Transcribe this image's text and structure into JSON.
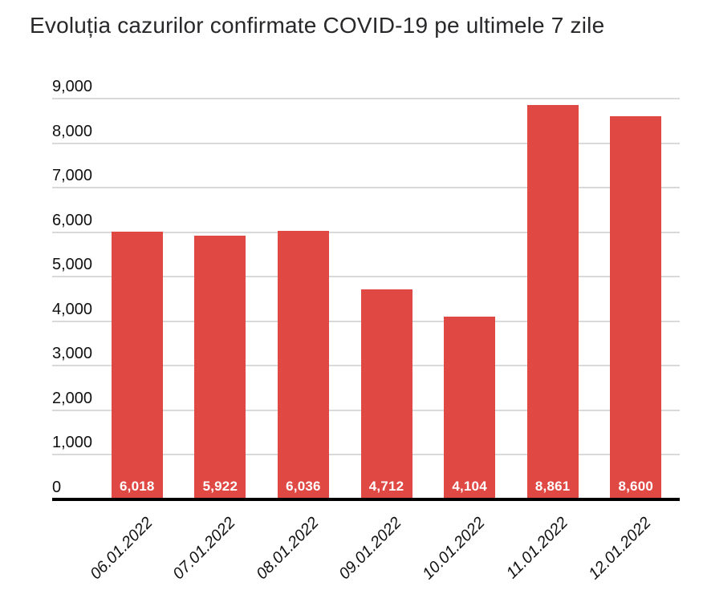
{
  "title": "Evoluția cazurilor confirmate COVID-19 pe ultimele 7 zile",
  "chart_data": {
    "type": "bar",
    "title": "Evoluția cazurilor confirmate COVID-19 pe ultimele 7 zile",
    "categories": [
      "06.01.2022",
      "07.01.2022",
      "08.01.2022",
      "09.01.2022",
      "10.01.2022",
      "11.01.2022",
      "12.01.2022"
    ],
    "values": [
      6018,
      5922,
      6036,
      4712,
      4104,
      8861,
      8600
    ],
    "value_labels": [
      "6,018",
      "5,922",
      "6,036",
      "4,712",
      "4,104",
      "8,861",
      "8,600"
    ],
    "y_ticks": [
      "0",
      "1,000",
      "2,000",
      "3,000",
      "4,000",
      "5,000",
      "6,000",
      "7,000",
      "8,000",
      "9,000"
    ],
    "ylim": [
      0,
      9000
    ],
    "grid": true,
    "legend": "none",
    "xlabel": "",
    "ylabel": "",
    "colors": {
      "bar": "#E04843",
      "value_label": "#FFFFFF",
      "gridline": "#D9D9D9",
      "axis_line": "#000000",
      "tick_text": "#111111",
      "title_text": "#28282B"
    }
  }
}
